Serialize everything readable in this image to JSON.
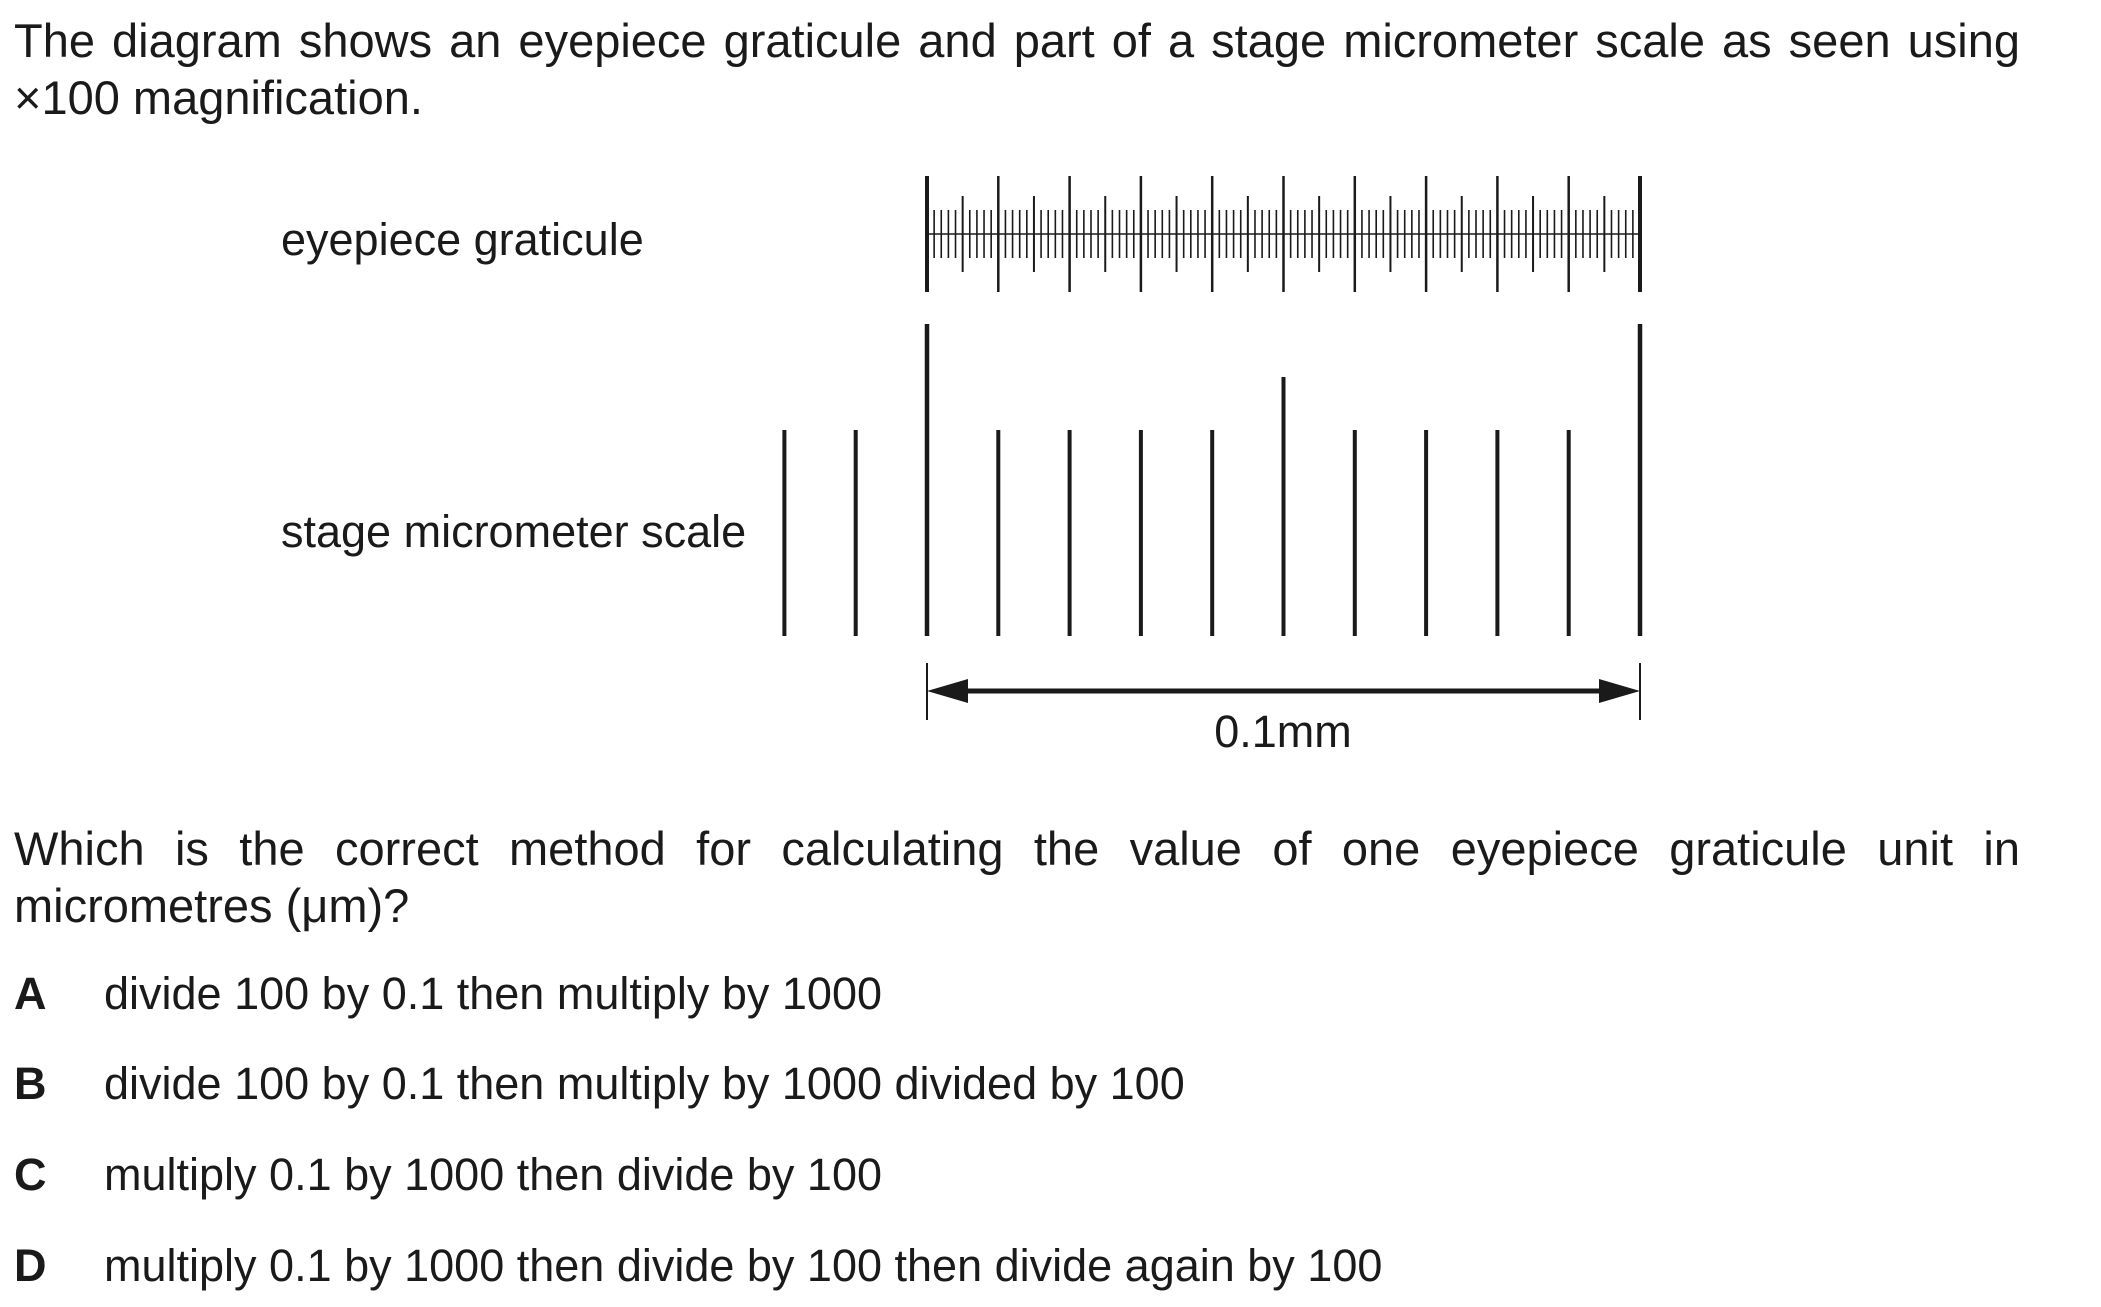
{
  "intro": {
    "line1": "The diagram shows an eyepiece graticule and part of a stage micrometer scale as seen using",
    "line2": "×100 magnification."
  },
  "diagram": {
    "graticule_label": "eyepiece graticule",
    "stage_label": "stage micrometer scale",
    "measure_label": "0.1mm",
    "graticule_units_across_span": 100,
    "stage_divisions_across_span": 10
  },
  "question": {
    "line1": "Which is the correct method for calculating the value of one eyepiece graticule unit in",
    "line2": "micrometres (μm)?"
  },
  "options": [
    {
      "letter": "A",
      "text": "divide 100 by 0.1 then multiply by 1000"
    },
    {
      "letter": "B",
      "text": "divide 100 by 0.1 then multiply by 1000 divided by 100"
    },
    {
      "letter": "C",
      "text": "multiply 0.1 by 1000 then divide by 100"
    },
    {
      "letter": "D",
      "text": "multiply 0.1 by 1000 then divide by 100 then divide again by 100"
    }
  ]
}
